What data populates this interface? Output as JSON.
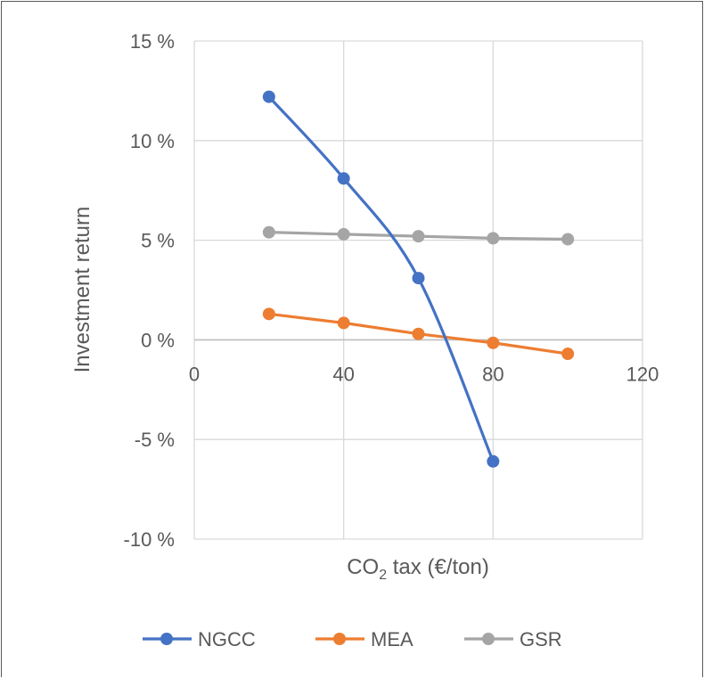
{
  "chart_data": {
    "type": "line",
    "title": "",
    "xlabel_parts": [
      "CO",
      "2",
      " tax (€/ton)"
    ],
    "ylabel": "Investment  return",
    "xlim": [
      0,
      120
    ],
    "ylim": [
      -10,
      15
    ],
    "x_ticks": [
      0,
      40,
      80,
      120
    ],
    "x_tick_labels": [
      "0",
      "40",
      "80",
      "120"
    ],
    "y_ticks": [
      -10,
      -5,
      0,
      5,
      10,
      15
    ],
    "y_tick_labels": [
      "-10 %",
      "-5 %",
      "0 %",
      "5 %",
      "10 %",
      "15 %"
    ],
    "grid": true,
    "legend_position": "bottom",
    "series": [
      {
        "name": "NGCC",
        "color": "#4472C4",
        "smooth": true,
        "x": [
          20,
          40,
          60,
          80
        ],
        "y": [
          12.2,
          8.1,
          3.1,
          -6.1
        ]
      },
      {
        "name": "MEA",
        "color": "#ED7D31",
        "smooth": false,
        "x": [
          20,
          40,
          60,
          80,
          100
        ],
        "y": [
          1.3,
          0.85,
          0.3,
          -0.15,
          -0.7
        ]
      },
      {
        "name": "GSR",
        "color": "#A5A5A5",
        "smooth": false,
        "x": [
          20,
          40,
          60,
          80,
          100
        ],
        "y": [
          5.4,
          5.3,
          5.2,
          5.1,
          5.05
        ]
      }
    ]
  }
}
